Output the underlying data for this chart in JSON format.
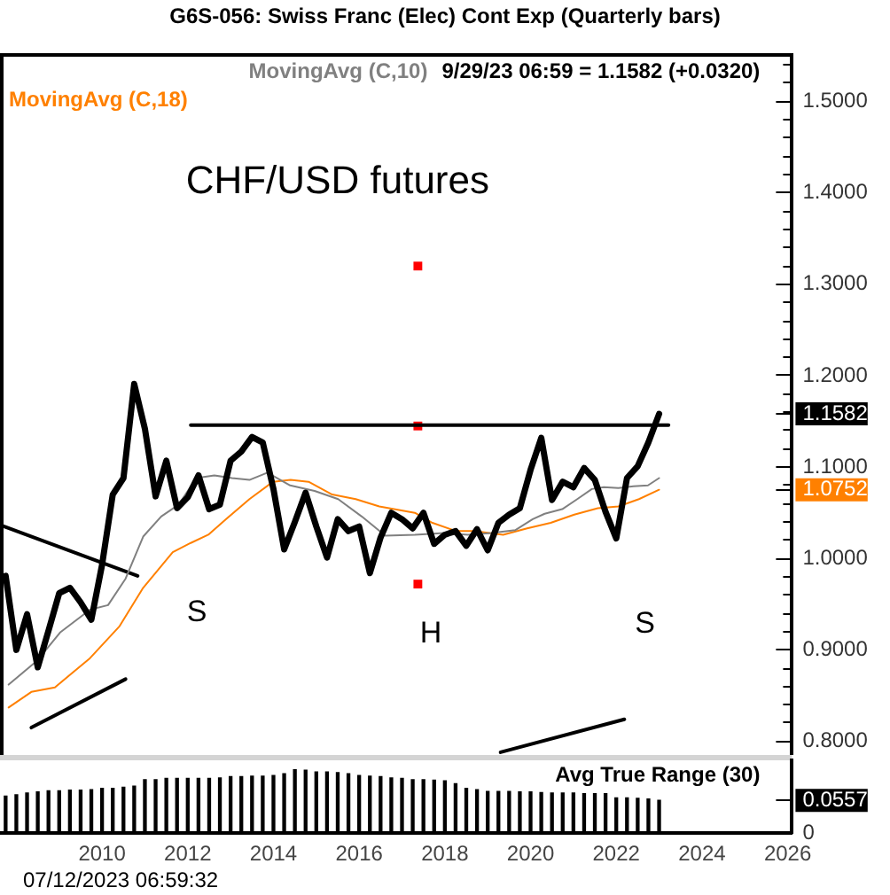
{
  "chart_data": [
    {
      "type": "line",
      "title": "G6S-056: Swiss Franc (Elec) Cont Exp (Quarterly bars)",
      "annotations": [
        "CHF/USD futures",
        "9/29/23 06:59 = 1.1582 (+0.0320)",
        "S",
        "H",
        "S"
      ],
      "x": [
        2007.75,
        2008,
        2008.25,
        2008.5,
        2008.75,
        2009,
        2009.25,
        2009.5,
        2009.75,
        2010,
        2010.25,
        2010.5,
        2010.75,
        2011,
        2011.25,
        2011.5,
        2011.75,
        2012,
        2012.25,
        2012.5,
        2012.75,
        2013,
        2013.25,
        2013.5,
        2013.75,
        2014,
        2014.25,
        2014.5,
        2014.75,
        2015,
        2015.25,
        2015.5,
        2015.75,
        2016,
        2016.25,
        2016.5,
        2016.75,
        2017,
        2017.25,
        2017.5,
        2017.75,
        2018,
        2018.25,
        2018.5,
        2018.75,
        2019,
        2019.25,
        2019.5,
        2019.75,
        2020,
        2020.25,
        2020.5,
        2020.75,
        2021,
        2021.25,
        2021.5,
        2021.75,
        2022,
        2022.25,
        2022.5,
        2022.75,
        2023
      ],
      "series": [
        {
          "color": "#000000",
          "values": [
            0.981,
            0.9,
            0.939,
            0.881,
            0.921,
            0.962,
            0.968,
            0.952,
            0.933,
            0.993,
            1.07,
            1.088,
            1.191,
            1.142,
            1.068,
            1.107,
            1.055,
            1.067,
            1.091,
            1.054,
            1.059,
            1.107,
            1.117,
            1.133,
            1.127,
            1.076,
            1.01,
            1.04,
            1.072,
            1.035,
            1.001,
            1.043,
            1.03,
            1.035,
            0.984,
            1.023,
            1.05,
            1.043,
            1.033,
            1.05,
            1.016,
            1.026,
            1.03,
            1.014,
            1.032,
            1.009,
            1.039,
            1.048,
            1.055,
            1.097,
            1.132,
            1.064,
            1.084,
            1.078,
            1.099,
            1.086,
            1.051,
            1.022,
            1.088,
            1.101,
            1.127,
            1.1582
          ]
        },
        {
          "name": "MovingAvg (C,10)",
          "color": "#808080",
          "x": [
            2007.82,
            2008.48,
            2009.02,
            2009.72,
            2010.14,
            2010.55,
            2010.96,
            2011.38,
            2011.79,
            2012.2,
            2012.62,
            2013.03,
            2013.44,
            2013.86,
            2014.39,
            2014.96,
            2015.51,
            2016.06,
            2016.61,
            2017.3,
            2017.99,
            2018.54,
            2019.09,
            2019.64,
            2020.05,
            2020.33,
            2020.74,
            2021.09,
            2021.43,
            2021.71,
            2022.05,
            2022.4,
            2022.74,
            2023
          ],
          "values": [
            0.862,
            0.888,
            0.919,
            0.944,
            0.949,
            0.978,
            1.024,
            1.046,
            1.059,
            1.088,
            1.091,
            1.088,
            1.086,
            1.094,
            1.08,
            1.074,
            1.065,
            1.046,
            1.025,
            1.026,
            1.028,
            1.026,
            1.028,
            1.031,
            1.043,
            1.049,
            1.054,
            1.065,
            1.076,
            1.078,
            1.077,
            1.079,
            1.08,
            1.088
          ]
        },
        {
          "name": "MovingAvg (C,18)",
          "color": "#ff8000",
          "x": [
            2007.82,
            2008.35,
            2008.9,
            2009.72,
            2010.41,
            2010.96,
            2011.65,
            2012.07,
            2012.48,
            2012.89,
            2013.44,
            2013.99,
            2014.4,
            2014.82,
            2015.37,
            2015.92,
            2016.47,
            2017.3,
            2017.71,
            2018.26,
            2018.68,
            2019.36,
            2019.92,
            2020.47,
            2021.02,
            2021.57,
            2022.05,
            2022.53,
            2023
          ],
          "values": [
            0.837,
            0.854,
            0.859,
            0.891,
            0.926,
            0.968,
            1.007,
            1.017,
            1.026,
            1.043,
            1.065,
            1.084,
            1.086,
            1.084,
            1.07,
            1.065,
            1.057,
            1.05,
            1.039,
            1.03,
            1.03,
            1.026,
            1.033,
            1.039,
            1.048,
            1.055,
            1.057,
            1.065,
            1.0752
          ]
        },
        {
          "color": "#000000",
          "x": [
            2007.66,
            2010.83
          ],
          "values": [
            1.036,
            0.981
          ]
        },
        {
          "color": "#000000",
          "x": [
            2008.35,
            2010.55
          ],
          "values": [
            0.815,
            0.868
          ]
        },
        {
          "color": "#000000",
          "x": [
            2012.07,
            2023.22
          ],
          "values": [
            1.146,
            1.146
          ]
        },
        {
          "color": "#000000",
          "x": [
            2019.3,
            2022.19
          ],
          "values": [
            0.788,
            0.824
          ]
        },
        {
          "type": "scatter",
          "color": "#ff0000",
          "x": [
            2017.37,
            2017.37,
            2017.37
          ],
          "values": [
            1.32,
            1.145,
            0.972
          ]
        }
      ],
      "xlim": [
        2007.66,
        2026.1
      ],
      "ylim": [
        0.785,
        1.551
      ],
      "yticks": [
        {
          "value": 0.8,
          "label": "0.8000"
        },
        {
          "value": 0.82,
          "label": null
        },
        {
          "value": 0.84,
          "label": null
        },
        {
          "value": 0.86,
          "label": null
        },
        {
          "value": 0.88,
          "label": null
        },
        {
          "value": 0.9,
          "label": "0.9000"
        },
        {
          "value": 0.92,
          "label": null
        },
        {
          "value": 0.94,
          "label": null
        },
        {
          "value": 0.96,
          "label": null
        },
        {
          "value": 0.98,
          "label": null
        },
        {
          "value": 1.0,
          "label": "1.0000"
        },
        {
          "value": 1.02,
          "label": null
        },
        {
          "value": 1.04,
          "label": null
        },
        {
          "value": 1.06,
          "label": null
        },
        1.0752,
        {
          "value": 1.08,
          "label": null
        },
        {
          "value": 1.1,
          "label": "1.1000"
        },
        {
          "value": 1.12,
          "label": null
        },
        {
          "value": 1.14,
          "label": null
        },
        1.1582,
        {
          "value": 1.16,
          "label": null
        },
        {
          "value": 1.18,
          "label": null
        },
        {
          "value": 1.2,
          "label": "1.2000"
        },
        {
          "value": 1.22,
          "label": null
        },
        {
          "value": 1.24,
          "label": null
        },
        {
          "value": 1.26,
          "label": null
        },
        {
          "value": 1.28,
          "label": null
        },
        {
          "value": 1.3,
          "label": "1.3000"
        },
        {
          "value": 1.32,
          "label": null
        },
        {
          "value": 1.34,
          "label": null
        },
        {
          "value": 1.36,
          "label": null
        },
        {
          "value": 1.38,
          "label": null
        },
        {
          "value": 1.4,
          "label": "1.4000"
        },
        {
          "value": 1.42,
          "label": null
        },
        {
          "value": 1.44,
          "label": null
        },
        {
          "value": 1.46,
          "label": null
        },
        {
          "value": 1.48,
          "label": null
        },
        {
          "value": 1.5,
          "label": "1.5000"
        },
        {
          "value": 1.52,
          "label": null
        },
        {
          "value": 1.54,
          "label": null
        }
      ],
      "legend": "top left",
      "tick_labels": "y"
    },
    {
      "type": "bar",
      "title": "Avg True Range (30)",
      "annotations": [
        "07/12/2023 06:59:32"
      ],
      "x": [
        2007.75,
        2008,
        2008.25,
        2008.5,
        2008.75,
        2009,
        2009.25,
        2009.5,
        2009.75,
        2010,
        2010.25,
        2010.5,
        2010.75,
        2011,
        2011.25,
        2011.5,
        2011.75,
        2012,
        2012.25,
        2012.5,
        2012.75,
        2013,
        2013.25,
        2013.5,
        2013.75,
        2014,
        2014.25,
        2014.5,
        2014.75,
        2015,
        2015.25,
        2015.5,
        2015.75,
        2016,
        2016.25,
        2016.5,
        2016.75,
        2017,
        2017.25,
        2017.5,
        2017.75,
        2018,
        2018.25,
        2018.5,
        2018.75,
        2019,
        2019.25,
        2019.5,
        2019.75,
        2020,
        2020.25,
        2020.5,
        2020.75,
        2021,
        2021.25,
        2021.5,
        2021.75,
        2022,
        2022.25,
        2022.5,
        2022.75,
        2023
      ],
      "values": [
        0.063,
        0.065,
        0.068,
        0.07,
        0.072,
        0.072,
        0.073,
        0.073,
        0.074,
        0.076,
        0.076,
        0.078,
        0.08,
        0.091,
        0.091,
        0.093,
        0.093,
        0.093,
        0.093,
        0.093,
        0.094,
        0.096,
        0.096,
        0.097,
        0.097,
        0.098,
        0.101,
        0.108,
        0.107,
        0.104,
        0.104,
        0.103,
        0.101,
        0.098,
        0.097,
        0.096,
        0.094,
        0.093,
        0.091,
        0.091,
        0.09,
        0.089,
        0.084,
        0.076,
        0.074,
        0.071,
        0.071,
        0.071,
        0.07,
        0.07,
        0.069,
        0.068,
        0.068,
        0.068,
        0.067,
        0.067,
        0.067,
        0.06,
        0.06,
        0.059,
        0.058,
        0.0557
      ],
      "color": "#000000",
      "xlim": [
        2007.66,
        2026.1
      ],
      "xticks": [
        2010,
        2012,
        2014,
        2016,
        2018,
        2020,
        2022,
        2024,
        2026
      ],
      "ylim": [
        0,
        0.124
      ],
      "yticks": [
        0,
        0.0557
      ]
    }
  ]
}
